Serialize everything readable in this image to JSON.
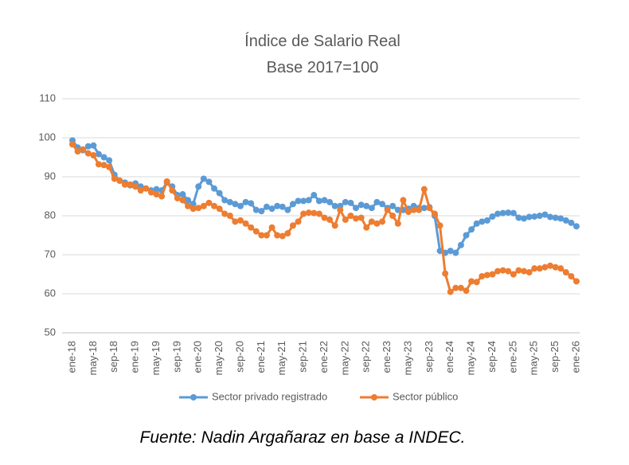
{
  "chart_data": {
    "type": "line",
    "title": "Índice de Salario Real",
    "subtitle": "Base 2017=100",
    "source": "Fuente: Nadin Argañaraz en base a INDEC.",
    "categories": [
      "ene-18",
      null,
      null,
      null,
      "may-18",
      null,
      null,
      null,
      "sep-18",
      null,
      null,
      null,
      "ene-19",
      null,
      null,
      null,
      "may-19",
      null,
      null,
      null,
      "sep-19",
      null,
      null,
      null,
      "ene-20",
      null,
      null,
      null,
      "may-20",
      null,
      null,
      null,
      "sep-20",
      null,
      null,
      null,
      "ene-21",
      null,
      null,
      null,
      "may-21",
      null,
      null,
      null,
      "sep-21",
      null,
      null,
      null,
      "ene-22",
      null,
      null,
      null,
      "may-22",
      null,
      null,
      null,
      "sep-22",
      null,
      null,
      null,
      "ene-23",
      null,
      null,
      null,
      "may-23",
      null,
      null,
      null,
      "sep-23",
      null,
      null,
      null,
      "ene-24",
      null,
      null,
      null,
      "may-24",
      null,
      null,
      null,
      "sep-24",
      null,
      null,
      null,
      "ene-25",
      null,
      null,
      null,
      "may-25",
      null,
      null,
      null,
      "sep-25",
      null,
      null,
      null,
      "ene-26"
    ],
    "series": [
      {
        "name": "Sector privado registrado",
        "color": "#5b9bd5",
        "values": [
          99.3,
          97.5,
          96.8,
          97.8,
          98,
          95.8,
          95,
          94.2,
          90.5,
          89,
          88.5,
          87.8,
          88.3,
          87.5,
          87,
          86.5,
          86.8,
          86.5,
          88.5,
          87.5,
          85.3,
          85.5,
          84,
          83,
          87.5,
          89.5,
          88.7,
          87,
          85.8,
          84,
          83.5,
          83,
          82.5,
          83.5,
          83.2,
          81.5,
          81.2,
          82.3,
          81.8,
          82.5,
          82.3,
          81.5,
          83,
          83.8,
          83.8,
          84,
          85.3,
          83.8,
          84,
          83.5,
          82.5,
          82.5,
          83.5,
          83.3,
          82,
          82.8,
          82.5,
          82,
          83.5,
          83,
          82,
          82.5,
          81.5,
          81.5,
          81.8,
          82.5,
          82,
          82,
          82.2,
          80,
          71,
          70.5,
          71,
          70.5,
          72.5,
          75,
          76.5,
          78,
          78.5,
          78.8,
          79.8,
          80.5,
          80.7,
          80.8,
          80.7,
          79.5,
          79.3,
          79.7,
          79.8,
          80,
          80.3,
          79.7,
          79.5,
          79.3,
          78.8,
          78.2,
          77.3
        ]
      },
      {
        "name": "Sector público",
        "color": "#ed7d31",
        "values": [
          98.3,
          96.5,
          97,
          96,
          95.5,
          93.2,
          93,
          92.5,
          89.5,
          89,
          88,
          88,
          87.5,
          86.5,
          87,
          86,
          85.5,
          85,
          88.8,
          86.5,
          84.5,
          84,
          82.5,
          81.8,
          82,
          82.5,
          83.3,
          82.5,
          81.8,
          80.5,
          80,
          78.5,
          78.8,
          78,
          77,
          76,
          75,
          75,
          77,
          75,
          74.8,
          75.5,
          77.5,
          78.5,
          80.5,
          80.8,
          80.7,
          80.5,
          79.5,
          79,
          77.5,
          81.5,
          79,
          80,
          79.3,
          79.5,
          77,
          78.5,
          78,
          78.5,
          81.5,
          80,
          78,
          84,
          81,
          81.5,
          81.5,
          86.8,
          82,
          80.5,
          77.5,
          65.2,
          60.5,
          61.5,
          61.5,
          60.8,
          63.2,
          63,
          64.5,
          64.8,
          65,
          65.8,
          66,
          65.8,
          65,
          66,
          65.8,
          65.5,
          66.5,
          66.5,
          66.8,
          67.2,
          66.8,
          66.5,
          65.5,
          64.5,
          63.2
        ]
      }
    ],
    "ylim": [
      50,
      110
    ],
    "yticks": [
      50,
      60,
      70,
      80,
      90,
      100,
      110
    ],
    "grid": true,
    "legend": "bottom"
  }
}
